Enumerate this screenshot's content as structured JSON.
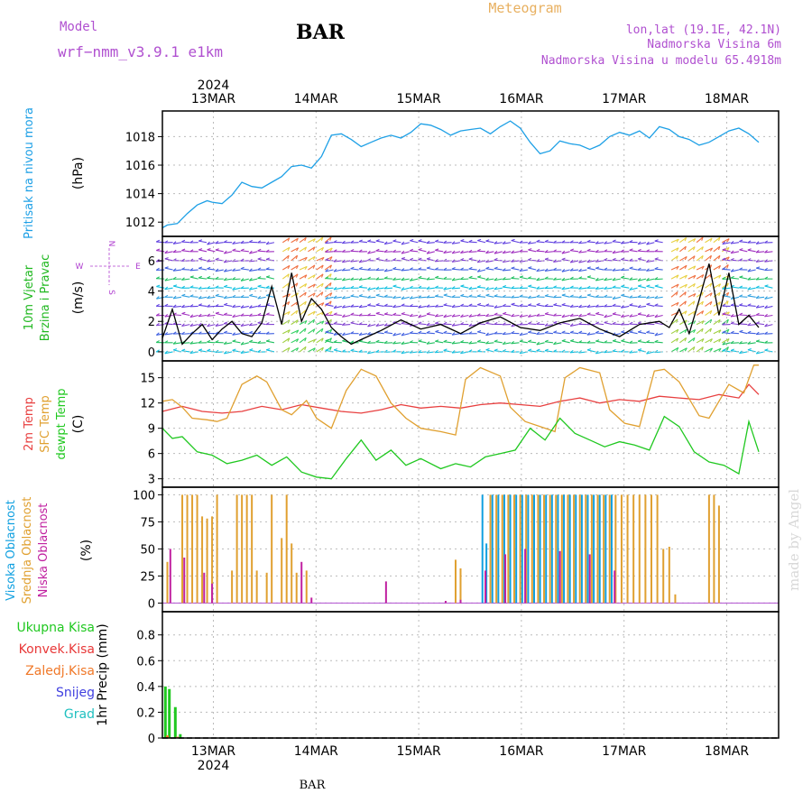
{
  "header": {
    "model_label": "Model",
    "model_name": "wrf−nmm_v3.9.1 e1km",
    "station": "BAR",
    "meteogram": "Meteogram",
    "lonlat": "lon,lat (19.1E, 42.1N)",
    "elevation": "Nadmorska Visina 6m",
    "model_elevation": "Nadmorska Visina u modelu 65.4918m"
  },
  "footer": {
    "station": "BAR",
    "year": "2024",
    "watermark": "made by Angel"
  },
  "colors": {
    "pressure": "#1ea0e6",
    "temp2m": "#e84040",
    "sfc": "#e0a030",
    "dew": "#20c820",
    "cloud_high": "#10a0e0",
    "cloud_mid": "#e0a030",
    "cloud_low": "#c020a0",
    "precip_total": "#20c820",
    "precip_conv": "#e83838",
    "precip_frozen": "#f07828",
    "snow": "#4040e0",
    "grad": "#20c0c0",
    "wind_label": "#20b820",
    "wind_dir": "#b040d0",
    "header_purple": "#b050d0",
    "header_orange": "#e8b060"
  },
  "chart_data": [
    {
      "type": "line",
      "title": "",
      "ylabel": "Pritisak na nivou mora",
      "unit": "(hPa)",
      "year": "2024",
      "x_ticks": [
        "13MAR",
        "14MAR",
        "15MAR",
        "16MAR",
        "17MAR",
        "18MAR"
      ],
      "y_ticks": [
        1012,
        1014,
        1016,
        1018
      ],
      "ylim": [
        1011.0,
        1019.8
      ],
      "grid": true,
      "series": [
        {
          "color": "#1ea0e6",
          "x": [
            0,
            0.05,
            0.15,
            0.25,
            0.35,
            0.45,
            0.5,
            0.6,
            0.7,
            0.8,
            0.9,
            1.0,
            1.1,
            1.2,
            1.3,
            1.4,
            1.5,
            1.6,
            1.7,
            1.8,
            1.9,
            2.0,
            2.1,
            2.2,
            2.3,
            2.4,
            2.5,
            2.6,
            2.7,
            2.8,
            2.9,
            3.0,
            3.1,
            3.2,
            3.3,
            3.4,
            3.5,
            3.6,
            3.7,
            3.8,
            3.9,
            4.0,
            4.1,
            4.2,
            4.3,
            4.4,
            4.5,
            4.6,
            4.7,
            4.8,
            4.9,
            5.0,
            5.1,
            5.2,
            5.3,
            5.4,
            5.5,
            5.6,
            5.7,
            5.8,
            5.9,
            6.0
          ],
          "values": [
            1011.6,
            1011.8,
            1011.9,
            1012.6,
            1013.2,
            1013.5,
            1013.4,
            1013.3,
            1013.9,
            1014.8,
            1014.5,
            1014.4,
            1014.8,
            1015.2,
            1015.9,
            1016.0,
            1015.8,
            1016.6,
            1018.1,
            1018.2,
            1017.8,
            1017.3,
            1017.6,
            1017.9,
            1018.1,
            1017.9,
            1018.3,
            1018.9,
            1018.8,
            1018.5,
            1018.1,
            1018.4,
            1018.5,
            1018.6,
            1018.2,
            1018.7,
            1019.1,
            1018.6,
            1017.6,
            1016.8,
            1017.0,
            1017.7,
            1017.5,
            1017.4,
            1017.1,
            1017.4,
            1018.0,
            1018.3,
            1018.1,
            1018.4,
            1017.9,
            1018.7,
            1018.5,
            1018.0,
            1017.8,
            1017.4,
            1017.6,
            1018.0,
            1018.4,
            1018.6,
            1018.2,
            1017.6
          ]
        }
      ]
    },
    {
      "type": "line",
      "title": "",
      "ylabel_lines": [
        "10m Vjetar",
        "Brzina i Pravac"
      ],
      "unit": "(m/s)",
      "direction_legend": [
        "N",
        "E",
        "S",
        "W"
      ],
      "y_ticks": [
        0,
        2,
        4,
        6
      ],
      "ylim": [
        -0.6,
        7.6
      ],
      "grid": true,
      "barb_rows": [
        0,
        0.6,
        1.2,
        1.8,
        2.4,
        3.0,
        3.6,
        4.2,
        4.8,
        5.4,
        6.0,
        6.6,
        7.2
      ],
      "series": [
        {
          "color": "#000000",
          "x": [
            0,
            0.1,
            0.2,
            0.3,
            0.4,
            0.5,
            0.6,
            0.7,
            0.8,
            0.9,
            1.0,
            1.1,
            1.2,
            1.3,
            1.4,
            1.5,
            1.6,
            1.7,
            1.8,
            1.9,
            2.0,
            2.2,
            2.4,
            2.6,
            2.8,
            3.0,
            3.2,
            3.4,
            3.6,
            3.8,
            4.0,
            4.2,
            4.4,
            4.6,
            4.8,
            5.0,
            5.1,
            5.2,
            5.3,
            5.4,
            5.5,
            5.6,
            5.7,
            5.8,
            5.9,
            6.0
          ],
          "values": [
            0.9,
            2.8,
            0.5,
            1.2,
            1.8,
            0.8,
            1.5,
            2.0,
            1.2,
            1.0,
            1.9,
            4.3,
            1.8,
            5.2,
            2.0,
            3.5,
            2.8,
            1.6,
            1.0,
            0.5,
            0.8,
            1.4,
            2.1,
            1.5,
            1.8,
            1.2,
            1.9,
            2.3,
            1.6,
            1.4,
            1.9,
            2.2,
            1.5,
            1.0,
            1.8,
            2.0,
            1.6,
            2.8,
            1.2,
            3.4,
            5.8,
            2.4,
            5.2,
            1.8,
            2.4,
            1.6
          ]
        }
      ]
    },
    {
      "type": "line",
      "title": "",
      "ylabel_lines": [
        "2m Temp",
        "SFC Temp",
        "dewpt Temp"
      ],
      "unit": "(C)",
      "y_ticks": [
        3,
        6,
        9,
        12,
        15
      ],
      "ylim": [
        2.0,
        17.0
      ],
      "grid": true,
      "series": [
        {
          "name": "2m Temp",
          "color": "#e84040",
          "x": [
            0,
            0.2,
            0.4,
            0.6,
            0.8,
            1.0,
            1.2,
            1.4,
            1.6,
            1.8,
            2.0,
            2.2,
            2.4,
            2.6,
            2.8,
            3.0,
            3.2,
            3.4,
            3.6,
            3.8,
            4.0,
            4.2,
            4.4,
            4.6,
            4.8,
            5.0,
            5.2,
            5.4,
            5.6,
            5.8,
            5.9,
            6.0
          ],
          "values": [
            11.0,
            11.6,
            11.0,
            10.8,
            11.0,
            11.6,
            11.2,
            11.8,
            11.4,
            11.0,
            10.8,
            11.2,
            11.8,
            11.4,
            11.6,
            11.4,
            11.8,
            12.0,
            11.8,
            11.6,
            12.2,
            12.6,
            12.0,
            12.4,
            12.2,
            12.8,
            12.6,
            12.4,
            13.0,
            12.6,
            14.2,
            13.0
          ]
        },
        {
          "name": "SFC Temp",
          "color": "#e0a030",
          "x": [
            0,
            0.1,
            0.2,
            0.3,
            0.45,
            0.55,
            0.65,
            0.8,
            0.95,
            1.05,
            1.2,
            1.3,
            1.45,
            1.55,
            1.7,
            1.85,
            2.0,
            2.15,
            2.3,
            2.45,
            2.6,
            2.8,
            2.95,
            3.05,
            3.2,
            3.4,
            3.5,
            3.65,
            3.8,
            3.95,
            4.05,
            4.2,
            4.4,
            4.5,
            4.65,
            4.8,
            4.95,
            5.05,
            5.2,
            5.4,
            5.5,
            5.7,
            5.85,
            5.95,
            6.0
          ],
          "values": [
            12.2,
            12.4,
            11.5,
            10.2,
            10.0,
            9.8,
            10.2,
            14.2,
            15.2,
            14.5,
            11.2,
            10.6,
            12.3,
            10.2,
            9.0,
            13.5,
            16.0,
            15.2,
            12.0,
            10.2,
            9.0,
            8.6,
            8.2,
            14.8,
            16.2,
            15.2,
            11.5,
            9.8,
            9.2,
            8.6,
            15.0,
            16.2,
            15.6,
            11.2,
            9.6,
            9.2,
            15.8,
            16.0,
            14.5,
            10.5,
            10.2,
            14.2,
            13.2,
            16.5,
            16.5
          ]
        },
        {
          "name": "dewpt Temp",
          "color": "#20c820",
          "x": [
            0,
            0.1,
            0.2,
            0.35,
            0.5,
            0.65,
            0.8,
            0.95,
            1.1,
            1.25,
            1.4,
            1.55,
            1.7,
            1.85,
            2.0,
            2.15,
            2.3,
            2.45,
            2.6,
            2.8,
            2.95,
            3.1,
            3.25,
            3.4,
            3.55,
            3.7,
            3.85,
            4.0,
            4.15,
            4.3,
            4.45,
            4.6,
            4.75,
            4.9,
            5.05,
            5.2,
            5.35,
            5.5,
            5.65,
            5.8,
            5.9,
            6.0
          ],
          "values": [
            9.0,
            7.8,
            8.0,
            6.2,
            5.8,
            4.8,
            5.2,
            5.8,
            4.6,
            5.6,
            3.8,
            3.2,
            3.0,
            5.4,
            7.6,
            5.2,
            6.4,
            4.6,
            5.4,
            4.2,
            4.8,
            4.4,
            5.6,
            6.0,
            6.4,
            9.0,
            7.6,
            10.2,
            8.4,
            7.6,
            6.8,
            7.4,
            7.0,
            6.4,
            10.4,
            9.2,
            6.2,
            5.0,
            4.6,
            3.6,
            9.8,
            6.2
          ]
        }
      ]
    },
    {
      "type": "bar",
      "title": "",
      "ylabel_lines": [
        "Visoka Oblacnost",
        "Srednja Oblacnost",
        "Niska Oblacnost"
      ],
      "unit": "(%)",
      "y_ticks": [
        0,
        25,
        50,
        75,
        100
      ],
      "ylim": [
        -8,
        107
      ],
      "grid": true,
      "series": [
        {
          "name": "Visoka Oblacnost",
          "color": "#10a0e0",
          "x": [
            3.22,
            3.26,
            3.32,
            3.38,
            3.44,
            3.5,
            3.56,
            3.62,
            3.68,
            3.74,
            3.8,
            3.86,
            3.92,
            3.98,
            4.04,
            4.1,
            4.16,
            4.22,
            4.28,
            4.34,
            4.4,
            4.46,
            4.52
          ],
          "values": [
            100,
            55,
            100,
            100,
            100,
            100,
            100,
            100,
            100,
            100,
            100,
            100,
            100,
            100,
            100,
            100,
            100,
            100,
            100,
            100,
            100,
            100,
            100
          ]
        },
        {
          "name": "Srednja Oblacnost",
          "color": "#e0a030",
          "x": [
            0.05,
            0.2,
            0.25,
            0.3,
            0.35,
            0.4,
            0.45,
            0.5,
            0.55,
            0.7,
            0.75,
            0.8,
            0.85,
            0.9,
            0.95,
            1.05,
            1.1,
            1.2,
            1.25,
            1.3,
            1.35,
            1.45,
            2.95,
            3.0,
            3.3,
            3.36,
            3.42,
            3.48,
            3.54,
            3.6,
            3.66,
            3.72,
            3.78,
            3.84,
            3.9,
            3.96,
            4.02,
            4.08,
            4.14,
            4.2,
            4.26,
            4.32,
            4.38,
            4.44,
            4.5,
            4.56,
            4.62,
            4.68,
            4.74,
            4.8,
            4.86,
            4.92,
            4.98,
            5.04,
            5.1,
            5.16,
            5.5,
            5.55,
            5.6
          ],
          "values": [
            38,
            100,
            100,
            100,
            100,
            80,
            78,
            80,
            100,
            30,
            100,
            100,
            100,
            100,
            30,
            28,
            100,
            60,
            100,
            55,
            28,
            30,
            40,
            32,
            100,
            100,
            100,
            100,
            100,
            100,
            100,
            100,
            100,
            100,
            100,
            100,
            100,
            100,
            100,
            100,
            100,
            100,
            100,
            100,
            100,
            100,
            100,
            100,
            100,
            100,
            100,
            100,
            100,
            50,
            52,
            8,
            100,
            100,
            90
          ]
        },
        {
          "name": "Niska Oblacnost",
          "color": "#c020a0",
          "x": [
            0.08,
            0.22,
            0.42,
            0.5,
            1.4,
            1.5,
            2.25,
            2.85,
            3.0,
            3.25,
            3.45,
            3.65,
            4.0,
            4.3,
            4.55
          ],
          "values": [
            50,
            42,
            28,
            18,
            38,
            5,
            20,
            2,
            3,
            30,
            45,
            50,
            48,
            45,
            30
          ]
        }
      ]
    },
    {
      "type": "bar",
      "title": "",
      "ylabel": "1hr Precip (mm)",
      "legend": [
        "Ukupna Kisa",
        "Konvek.Kisa",
        "Zaledj.Kisa",
        "Snijeg",
        "Grad"
      ],
      "y_ticks": [
        0,
        0.2,
        0.4,
        0.6,
        0.8
      ],
      "ylim": [
        0,
        0.98
      ],
      "grid": true,
      "series": [
        {
          "name": "Ukupna Kisa",
          "color": "#20c820",
          "x": [
            0.03,
            0.07,
            0.13,
            0.18
          ],
          "values": [
            0.4,
            0.38,
            0.24,
            0.03
          ]
        },
        {
          "name": "Zaledj.Kisa",
          "color": "#f07828",
          "x": [
            0.05,
            0.15
          ],
          "values": [
            0.02,
            0.01
          ]
        }
      ]
    }
  ]
}
